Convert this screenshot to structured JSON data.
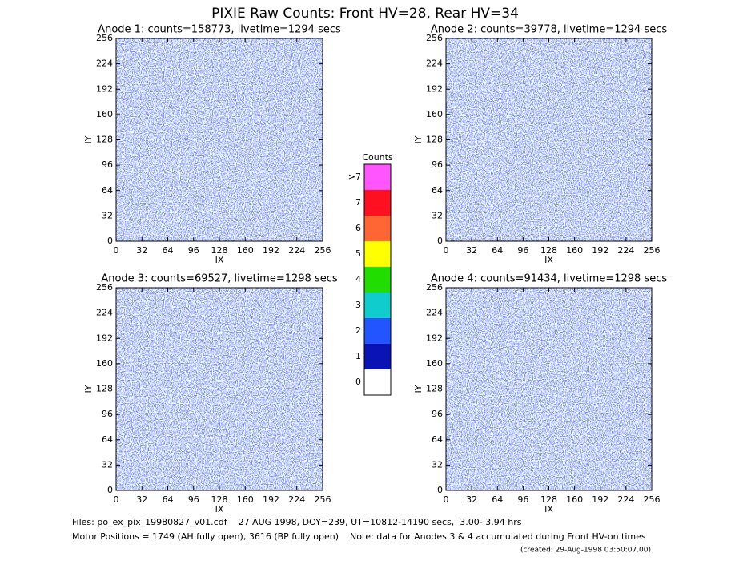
{
  "title": "PIXIE Raw Counts:  Front HV=28, Rear HV=34",
  "chart_data": [
    {
      "type": "heatmap",
      "title": "Anode 1: counts=158773, livetime=1294 secs",
      "xlabel": "IX",
      "ylabel": "IY",
      "xlim": [
        0,
        256
      ],
      "xticks": [
        0,
        32,
        64,
        96,
        128,
        160,
        192,
        224,
        256
      ],
      "ylim": [
        0,
        256
      ],
      "yticks": [
        0,
        32,
        64,
        96,
        128,
        160,
        192,
        224,
        256
      ]
    },
    {
      "type": "heatmap",
      "title": "Anode 2: counts=39778, livetime=1294 secs",
      "xlabel": "IX",
      "ylabel": "IY",
      "xlim": [
        0,
        256
      ],
      "xticks": [
        0,
        32,
        64,
        96,
        128,
        160,
        192,
        224,
        256
      ],
      "ylim": [
        0,
        256
      ],
      "yticks": [
        0,
        32,
        64,
        96,
        128,
        160,
        192,
        224,
        256
      ]
    },
    {
      "type": "heatmap",
      "title": "Anode 3: counts=69527, livetime=1298 secs",
      "xlabel": "IX",
      "ylabel": "IY",
      "xlim": [
        0,
        256
      ],
      "xticks": [
        0,
        32,
        64,
        96,
        128,
        160,
        192,
        224,
        256
      ],
      "ylim": [
        0,
        256
      ],
      "yticks": [
        0,
        32,
        64,
        96,
        128,
        160,
        192,
        224,
        256
      ]
    },
    {
      "type": "heatmap",
      "title": "Anode 4: counts=91434, livetime=1298 secs",
      "xlabel": "IX",
      "ylabel": "IY",
      "xlim": [
        0,
        256
      ],
      "xticks": [
        0,
        32,
        64,
        96,
        128,
        160,
        192,
        224,
        256
      ],
      "ylim": [
        0,
        256
      ],
      "yticks": [
        0,
        32,
        64,
        96,
        128,
        160,
        192,
        224,
        256
      ]
    }
  ],
  "colorbar": {
    "title": "Counts",
    "levels": [
      {
        "label": ">7",
        "color": "#ff55ff"
      },
      {
        "label": "7",
        "color": "#ff1020"
      },
      {
        "label": "6",
        "color": "#ff6633"
      },
      {
        "label": "5",
        "color": "#ffff00"
      },
      {
        "label": "4",
        "color": "#22dd00"
      },
      {
        "label": "3",
        "color": "#11cccc"
      },
      {
        "label": "2",
        "color": "#2255ff"
      },
      {
        "label": "1",
        "color": "#0a14b4"
      },
      {
        "label": "0",
        "color": "#ffffff"
      }
    ]
  },
  "footer": {
    "files": "Files: po_ex_pix_19980827_v01.cdf    27 AUG 1998, DOY=239, UT=10812-14190 secs,  3.00- 3.94 hrs",
    "motor": "Motor Positions = 1749 (AH fully open), 3616 (BP fully open)    Note: data for Anodes 3 & 4 accumulated during Front HV-on times",
    "created": "(created: 29-Aug-1998 03:50:07.00)"
  }
}
